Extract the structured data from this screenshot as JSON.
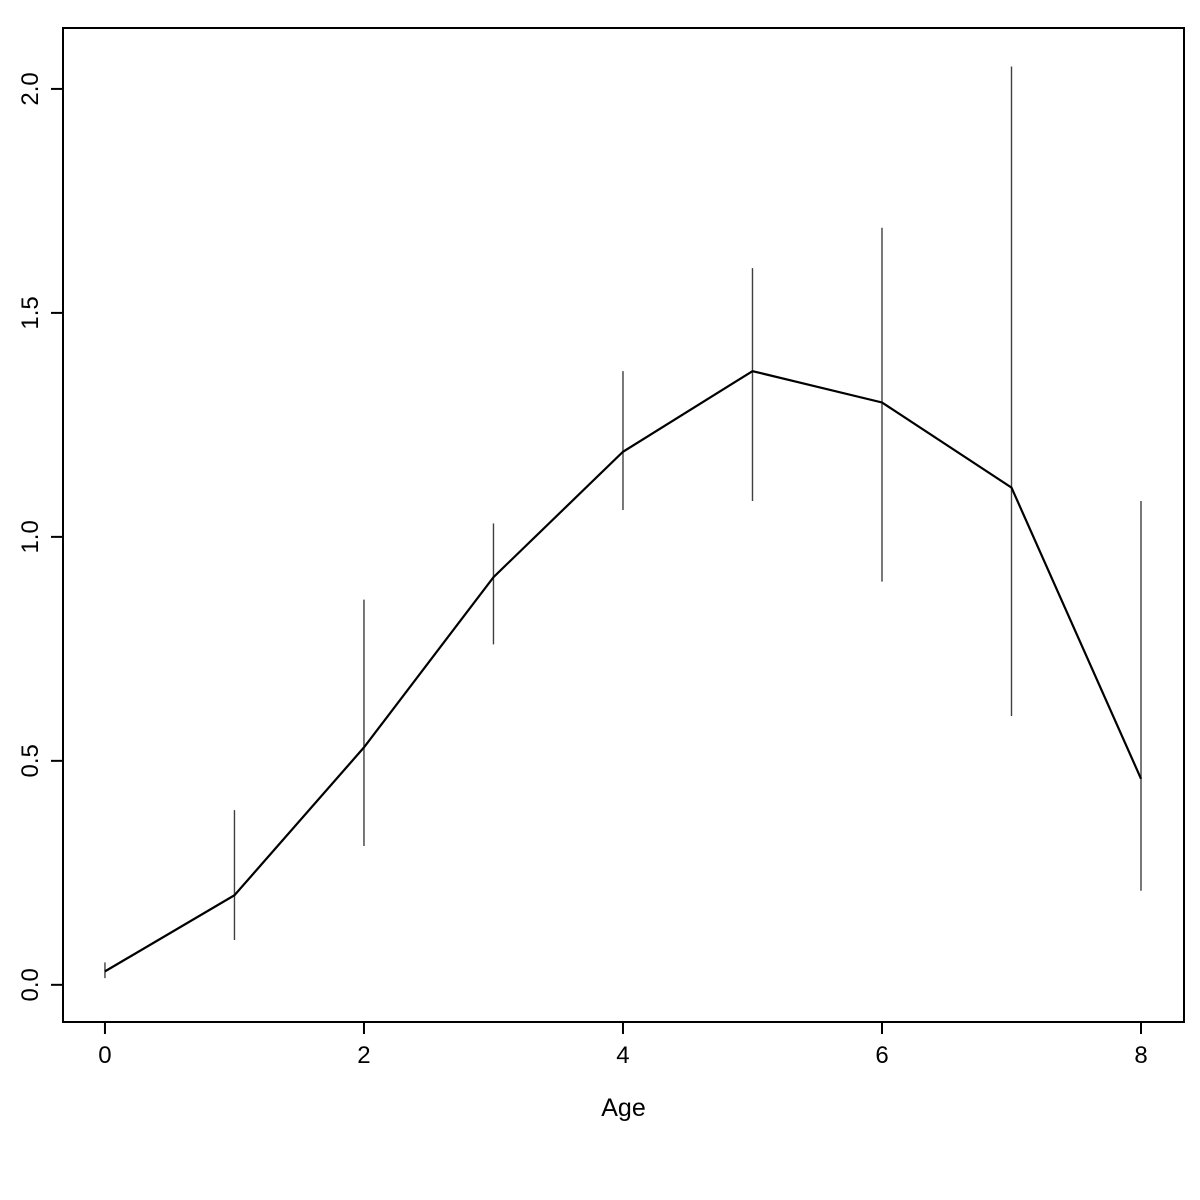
{
  "page": {
    "background": "#ffffff"
  },
  "chart_data": {
    "type": "line",
    "title": "",
    "xlabel": "Age",
    "ylabel": "",
    "x": [
      0,
      1,
      2,
      3,
      4,
      5,
      6,
      7,
      8
    ],
    "y": [
      0.03,
      0.2,
      0.53,
      0.91,
      1.19,
      1.37,
      1.3,
      1.11,
      0.46
    ],
    "error_low": [
      0.015,
      0.1,
      0.31,
      0.76,
      1.06,
      1.08,
      0.9,
      0.6,
      0.21
    ],
    "error_high": [
      0.05,
      0.39,
      0.86,
      1.03,
      1.37,
      1.6,
      1.69,
      2.05,
      1.08
    ],
    "x_tick_values": [
      0,
      2,
      4,
      6,
      8
    ],
    "x_tick_labels": [
      "0",
      "2",
      "4",
      "6",
      "8"
    ],
    "y_tick_values": [
      0.0,
      0.5,
      1.0,
      1.5,
      2.0
    ],
    "y_tick_labels": [
      "0.0",
      "0.5",
      "1.0",
      "1.5",
      "2.0"
    ],
    "xlim": [
      -0.324,
      8.332
    ],
    "ylim": [
      -0.083,
      2.136
    ],
    "grid": false,
    "legend": "none",
    "line_color": "#000000",
    "error_bar_color": "#3f3f3f",
    "frame_color": "#000000",
    "background": "#ffffff"
  }
}
